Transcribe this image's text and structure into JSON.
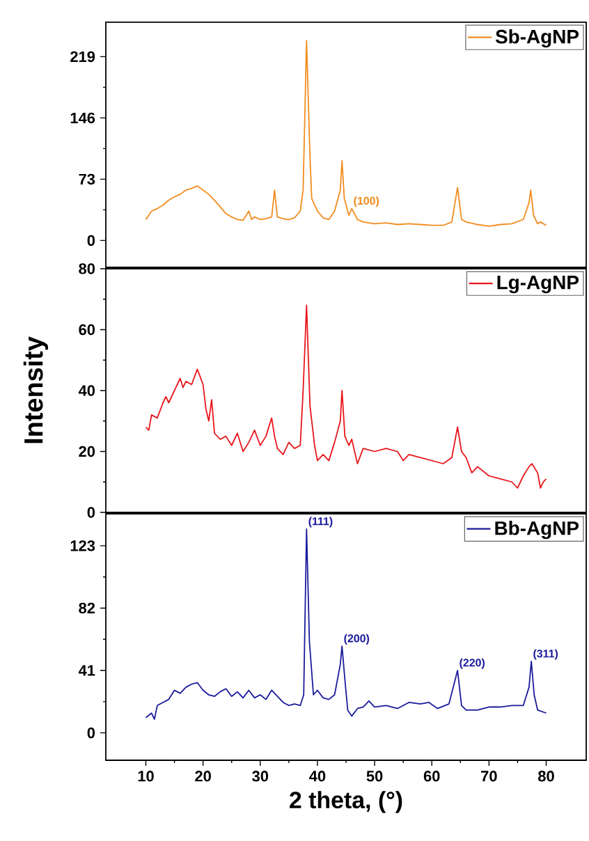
{
  "chart_data": [
    {
      "type": "line",
      "xlim": [
        3,
        87
      ],
      "xticks": [
        10,
        20,
        30,
        40,
        50,
        60,
        70,
        80
      ],
      "ylim": [
        -32,
        260
      ],
      "yticks": [
        0,
        73,
        146,
        219
      ],
      "tick_labels": "y",
      "legend": "top right",
      "series": [
        {
          "name": "Sb-AgNP",
          "color": "#f28c1e",
          "x": [
            10,
            11,
            12,
            13,
            14,
            15,
            16,
            17,
            18,
            19,
            20,
            21,
            22,
            23,
            24,
            25,
            26,
            27,
            28,
            28.5,
            29,
            30,
            31,
            32,
            32.5,
            33,
            34,
            35,
            36,
            37,
            37.5,
            38.1,
            38.7,
            39,
            40,
            41,
            42,
            43,
            44,
            44.3,
            44.7,
            45.5,
            46,
            47,
            48,
            50,
            52,
            54,
            56,
            58,
            60,
            62,
            63.5,
            64.5,
            65.2,
            66,
            68,
            70,
            72,
            74,
            76,
            77,
            77.3,
            77.8,
            78.5,
            79,
            80
          ],
          "values": [
            25,
            35,
            38,
            42,
            48,
            52,
            55,
            60,
            62,
            65,
            60,
            55,
            48,
            40,
            32,
            28,
            25,
            24,
            35,
            25,
            28,
            25,
            26,
            28,
            60,
            28,
            26,
            25,
            27,
            35,
            60,
            238,
            100,
            50,
            35,
            27,
            25,
            35,
            60,
            95,
            50,
            30,
            38,
            25,
            22,
            20,
            21,
            19,
            20,
            19,
            18,
            18,
            22,
            63,
            25,
            22,
            19,
            17,
            19,
            20,
            25,
            45,
            60,
            30,
            20,
            22,
            18
          ]
        }
      ],
      "annotations": [
        {
          "text": "(100)",
          "x": 46,
          "y": 38
        }
      ]
    },
    {
      "type": "line",
      "xlim": [
        3,
        87
      ],
      "xticks": [
        10,
        20,
        30,
        40,
        50,
        60,
        70,
        80
      ],
      "ylim": [
        0,
        80
      ],
      "yticks": [
        0,
        20,
        40,
        60,
        80
      ],
      "tick_labels": "y",
      "legend": "top right",
      "ylabel": "Intensity",
      "series": [
        {
          "name": "Lg-AgNP",
          "color": "#e8141a",
          "x": [
            10,
            10.5,
            11,
            12,
            13,
            13.5,
            14,
            15,
            16,
            16.5,
            17,
            18,
            19,
            20,
            20.5,
            21,
            21.5,
            22,
            23,
            24,
            25,
            26,
            27,
            28,
            29,
            30,
            31,
            32,
            32.5,
            33,
            34,
            35,
            36,
            37,
            37.5,
            38.1,
            38.7,
            39.5,
            40,
            41,
            42,
            43,
            44,
            44.3,
            44.8,
            45.5,
            46,
            47,
            48,
            50,
            52,
            54,
            55,
            56,
            58,
            60,
            62,
            63.5,
            64.5,
            65.2,
            66,
            67,
            68,
            70,
            72,
            74,
            75,
            76,
            77,
            77.5,
            78.5,
            79,
            79.5,
            80
          ],
          "values": [
            28,
            27,
            32,
            31,
            36,
            38,
            36,
            40,
            44,
            41,
            43,
            42,
            47,
            42,
            34,
            30,
            37,
            26,
            24,
            25,
            22,
            26,
            20,
            23,
            27,
            22,
            25,
            31,
            25,
            21,
            19,
            23,
            21,
            22,
            40,
            68,
            35,
            22,
            17,
            19,
            17,
            23,
            30,
            40,
            25,
            22,
            24,
            16,
            21,
            20,
            21,
            20,
            17,
            19,
            18,
            17,
            16,
            18,
            28,
            20,
            18,
            13,
            15,
            12,
            11,
            10,
            8,
            12,
            15,
            16,
            13,
            8,
            10,
            11
          ]
        }
      ]
    },
    {
      "type": "line",
      "xlim": [
        3,
        87
      ],
      "xticks": [
        10,
        20,
        30,
        40,
        50,
        60,
        70,
        80
      ],
      "ylim": [
        -18,
        144
      ],
      "yticks": [
        0,
        41,
        82,
        123
      ],
      "legend": "top right",
      "xlabel": "2 theta, (°)",
      "series": [
        {
          "name": "Bb-AgNP",
          "color": "#1a1a9c",
          "x": [
            10,
            11,
            11.5,
            12,
            13,
            14,
            15,
            16,
            17,
            18,
            19,
            20,
            21,
            22,
            23,
            24,
            25,
            26,
            27,
            28,
            29,
            30,
            31,
            32,
            33,
            34,
            35,
            36,
            37,
            37.6,
            38.1,
            38.6,
            39.3,
            40,
            41,
            42,
            43,
            44,
            44.3,
            44.8,
            45.3,
            46,
            47,
            48,
            49,
            50,
            52,
            54,
            56,
            58,
            59.5,
            61,
            63,
            64.5,
            65.2,
            66,
            68,
            70,
            72,
            74,
            76,
            77,
            77.4,
            77.9,
            78.5,
            80
          ],
          "values": [
            10,
            13,
            9,
            18,
            20,
            22,
            28,
            26,
            30,
            32,
            33,
            28,
            25,
            24,
            27,
            29,
            24,
            27,
            23,
            28,
            23,
            25,
            22,
            28,
            24,
            20,
            18,
            19,
            18,
            25,
            134,
            60,
            25,
            28,
            23,
            22,
            25,
            45,
            57,
            35,
            15,
            11,
            16,
            17,
            21,
            17,
            18,
            16,
            20,
            19,
            20,
            16,
            19,
            41,
            18,
            15,
            15,
            17,
            17,
            18,
            18,
            30,
            47,
            25,
            15,
            13
          ]
        }
      ],
      "annotations": [
        {
          "text": "(111)",
          "x": 38.1,
          "y": 134
        },
        {
          "text": "(200)",
          "x": 44.3,
          "y": 57
        },
        {
          "text": "(220)",
          "x": 64.5,
          "y": 41
        },
        {
          "text": "(311)",
          "x": 77.4,
          "y": 47
        }
      ]
    }
  ]
}
